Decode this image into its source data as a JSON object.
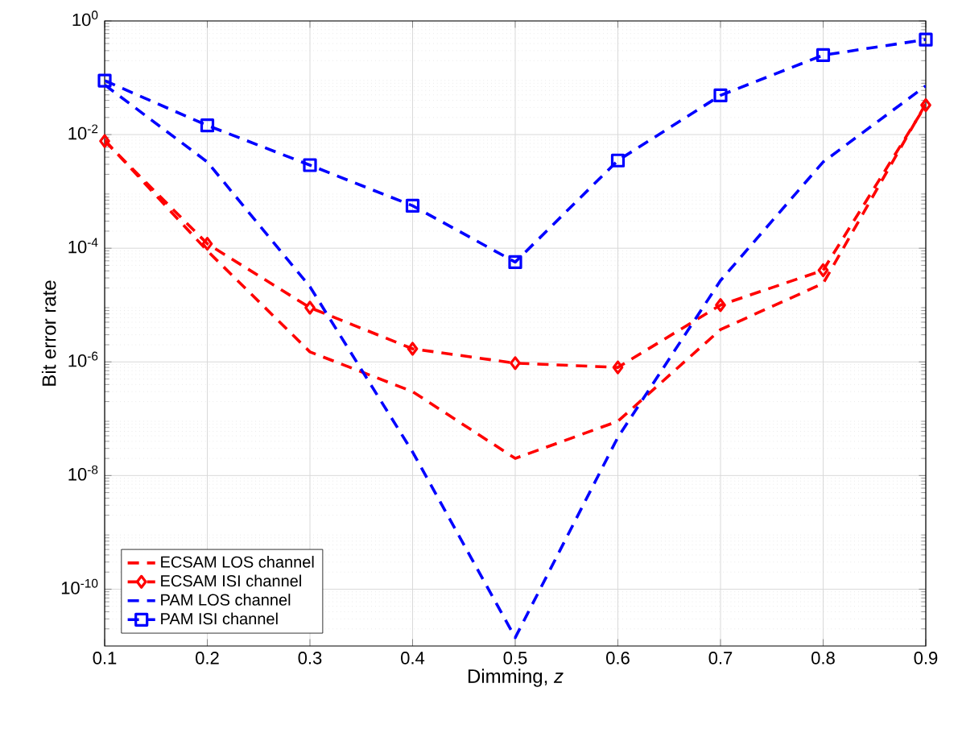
{
  "chart_data": {
    "type": "line",
    "xlabel": "Dimming, *z*",
    "ylabel": "Bit error rate",
    "x": [
      0.1,
      0.2,
      0.3,
      0.4,
      0.5,
      0.6,
      0.7,
      0.8,
      0.9
    ],
    "series": [
      {
        "name": "ECSAM LOS channel",
        "color": "#ff0000",
        "marker": "none",
        "values": [
          0.008,
          9e-05,
          1.5e-06,
          3e-07,
          2e-08,
          9e-08,
          3.7e-06,
          2.4e-05,
          0.035
        ]
      },
      {
        "name": "ECSAM ISI channel",
        "color": "#ff0000",
        "marker": "diamond",
        "values": [
          0.0077,
          0.00012,
          9e-06,
          1.7e-06,
          9.5e-07,
          8e-07,
          1e-05,
          4.1e-05,
          0.033
        ]
      },
      {
        "name": "PAM LOS channel",
        "color": "#0000ff",
        "marker": "none",
        "values": [
          0.075,
          0.0033,
          2.1e-05,
          2.6e-08,
          1.4e-11,
          4.7e-08,
          2.7e-05,
          0.0033,
          0.072
        ]
      },
      {
        "name": "PAM ISI channel",
        "color": "#0000ff",
        "marker": "square",
        "values": [
          0.089,
          0.0145,
          0.0029,
          0.00056,
          5.7e-05,
          0.0035,
          0.049,
          0.25,
          0.47
        ]
      }
    ],
    "line_style": "dashed",
    "log": "y",
    "grid": true,
    "legend": "bottom left",
    "xlim": [
      0.1,
      0.9
    ],
    "xticks": [
      0.1,
      0.2,
      0.3,
      0.4,
      0.5,
      0.6,
      0.7,
      0.8,
      0.9
    ],
    "ylim": [
      1e-11,
      1
    ],
    "yticks": [
      {
        "value": 1e-10,
        "label": "10$^{-10}$"
      },
      {
        "value": 1e-08,
        "label": "10$^{-8}$"
      },
      {
        "value": 1e-06,
        "label": "10$^{-6}$"
      },
      {
        "value": 0.0001,
        "label": "10$^{-4}$"
      },
      {
        "value": 0.01,
        "label": "10$^{-2}$"
      },
      {
        "value": 1,
        "label": "10$^{0}$"
      }
    ]
  }
}
